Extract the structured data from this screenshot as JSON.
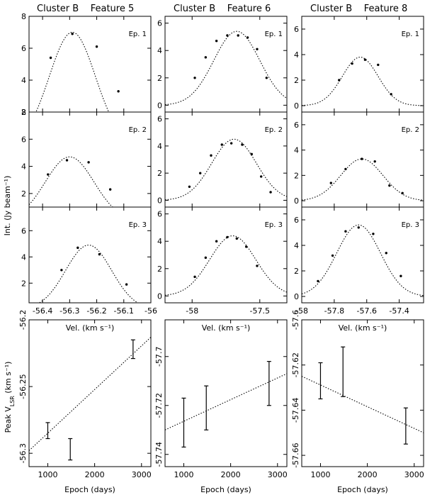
{
  "chart_data": [
    {
      "type": "scatter",
      "column_title": "Cluster B    Feature 5",
      "xlabel": "Vel. (km s⁻¹)",
      "ylabel": "Int. (Jy beam⁻¹)",
      "xlim": [
        -56.45,
        -56.0
      ],
      "xticks": [
        -56.4,
        -56.3,
        -56.2,
        -56.1,
        -56.0
      ],
      "xtick_labels": [
        "-56.4",
        "-56.3",
        "-56.2",
        "-56.1",
        "-56"
      ],
      "panels": [
        {
          "label": "Ep. 1",
          "ylim": [
            2,
            8
          ],
          "yticks": [
            2,
            4,
            6,
            8
          ],
          "ytick_labels": [
            "2",
            "4",
            "6",
            "8"
          ],
          "points": [
            [
              -56.37,
              5.4
            ],
            [
              -56.29,
              6.9
            ],
            [
              -56.2,
              6.1
            ],
            [
              -56.12,
              3.3
            ]
          ],
          "fit": {
            "center": -56.29,
            "amp": 7.0,
            "sigma": 0.085
          }
        },
        {
          "label": "Ep. 2",
          "ylim": [
            1,
            8
          ],
          "yticks": [
            2,
            4,
            6,
            8
          ],
          "ytick_labels": [
            "2",
            "4",
            "6",
            "8"
          ],
          "points": [
            [
              -56.38,
              3.4
            ],
            [
              -56.31,
              4.45
            ],
            [
              -56.23,
              4.3
            ],
            [
              -56.15,
              2.3
            ]
          ],
          "fit": {
            "center": -56.3,
            "amp": 4.7,
            "sigma": 0.09
          }
        },
        {
          "label": "Ep. 3",
          "ylim": [
            0.5,
            7.8
          ],
          "yticks": [
            2,
            4,
            6
          ],
          "ytick_labels": [
            "2",
            "4",
            "6"
          ],
          "points": [
            [
              -56.33,
              3.0
            ],
            [
              -56.27,
              4.7
            ],
            [
              -56.19,
              4.2
            ],
            [
              -56.09,
              1.9
            ]
          ],
          "fit": {
            "center": -56.23,
            "amp": 4.9,
            "sigma": 0.085
          }
        }
      ],
      "bottom": {
        "xlabel": "Epoch (days)",
        "ylabel": "Peak V",
        "xlim": [
          600,
          3200
        ],
        "xticks": [
          1000,
          2000,
          3000
        ],
        "xtick_labels": [
          "1000",
          "2000",
          "3000"
        ],
        "ylim": [
          -56.31,
          -56.2
        ],
        "yticks": [
          -56.3,
          -56.25,
          -56.2
        ],
        "ytick_labels": [
          "-56.3",
          "-56.25",
          "-56.2"
        ],
        "points": [
          {
            "x": 1000,
            "y": -56.283,
            "err": 0.006
          },
          {
            "x": 1480,
            "y": -56.297,
            "err": 0.008
          },
          {
            "x": 2820,
            "y": -56.222,
            "err": 0.007
          }
        ],
        "fit": [
          [
            600,
            -56.298
          ],
          [
            3200,
            -56.213
          ]
        ]
      }
    },
    {
      "type": "scatter",
      "column_title": "Cluster B    Feature 6",
      "xlabel": "Vel. (km s⁻¹)",
      "ylabel": "",
      "xlim": [
        -58.2,
        -57.3
      ],
      "xticks": [
        -58.0,
        -57.5
      ],
      "xtick_labels": [
        "-58",
        "-57.5"
      ],
      "panels": [
        {
          "label": "Ep. 1",
          "ylim": [
            -0.5,
            6.5
          ],
          "yticks": [
            0,
            2,
            4,
            6
          ],
          "ytick_labels": [
            "0",
            "2",
            "4",
            "6"
          ],
          "points": [
            [
              -57.98,
              2.0
            ],
            [
              -57.9,
              3.5
            ],
            [
              -57.82,
              4.7
            ],
            [
              -57.74,
              5.1
            ],
            [
              -57.66,
              5.1
            ],
            [
              -57.59,
              4.95
            ],
            [
              -57.52,
              4.1
            ],
            [
              -57.45,
              2.0
            ]
          ],
          "fit": {
            "center": -57.67,
            "amp": 5.4,
            "sigma": 0.17
          }
        },
        {
          "label": "Ep. 2",
          "ylim": [
            -0.5,
            6.5
          ],
          "yticks": [
            0,
            2,
            4,
            6
          ],
          "ytick_labels": [
            "0",
            "2",
            "4",
            "6"
          ],
          "points": [
            [
              -58.02,
              1.0
            ],
            [
              -57.94,
              2.0
            ],
            [
              -57.86,
              3.3
            ],
            [
              -57.78,
              4.1
            ],
            [
              -57.71,
              4.2
            ],
            [
              -57.63,
              4.1
            ],
            [
              -57.56,
              3.4
            ],
            [
              -57.49,
              1.75
            ],
            [
              -57.42,
              0.6
            ]
          ],
          "fit": {
            "center": -57.69,
            "amp": 4.5,
            "sigma": 0.165
          }
        },
        {
          "label": "Ep. 3",
          "ylim": [
            -0.5,
            6.5
          ],
          "yticks": [
            0,
            2,
            4,
            6
          ],
          "ytick_labels": [
            "0",
            "2",
            "4",
            "6"
          ],
          "points": [
            [
              -57.98,
              1.4
            ],
            [
              -57.9,
              2.8
            ],
            [
              -57.82,
              4.0
            ],
            [
              -57.74,
              4.3
            ],
            [
              -57.67,
              4.2
            ],
            [
              -57.6,
              3.6
            ],
            [
              -57.52,
              2.2
            ]
          ],
          "fit": {
            "center": -57.7,
            "amp": 4.4,
            "sigma": 0.17
          }
        }
      ],
      "bottom": {
        "xlabel": "Epoch (days)",
        "ylabel": "",
        "xlim": [
          600,
          3200
        ],
        "xticks": [
          1000,
          2000,
          3000
        ],
        "xtick_labels": [
          "1000",
          "2000",
          "3000"
        ],
        "ylim": [
          -57.745,
          -57.685
        ],
        "yticks": [
          -57.74,
          -57.72,
          -57.7
        ],
        "ytick_labels": [
          "-57.74",
          "-57.72",
          "-57.7"
        ],
        "points": [
          {
            "x": 1000,
            "y": -57.727,
            "err": 0.01
          },
          {
            "x": 1480,
            "y": -57.721,
            "err": 0.009
          },
          {
            "x": 2820,
            "y": -57.711,
            "err": 0.009
          }
        ],
        "fit": [
          [
            600,
            -57.73
          ],
          [
            3200,
            -57.707
          ]
        ]
      }
    },
    {
      "type": "scatter",
      "column_title": "Cluster B    Feature 8",
      "xlabel": "Vel. (km s⁻¹)",
      "ylabel": "",
      "xlim": [
        -58.0,
        -57.25
      ],
      "xticks": [
        -58.0,
        -57.8,
        -57.6,
        -57.4
      ],
      "xtick_labels": [
        "-58",
        "-57.8",
        "-57.6",
        "-57.4"
      ],
      "panels": [
        {
          "label": "Ep. 1",
          "ylim": [
            -0.5,
            7.0
          ],
          "yticks": [
            0,
            2,
            4,
            6
          ],
          "ytick_labels": [
            "0",
            "2",
            "4",
            "6"
          ],
          "points": [
            [
              -57.77,
              2.0
            ],
            [
              -57.69,
              3.3
            ],
            [
              -57.61,
              3.6
            ],
            [
              -57.53,
              3.2
            ],
            [
              -57.45,
              0.9
            ]
          ],
          "fit": {
            "center": -57.64,
            "amp": 3.8,
            "sigma": 0.11
          }
        },
        {
          "label": "Ep. 2",
          "ylim": [
            -0.5,
            7.0
          ],
          "yticks": [
            0,
            2,
            4,
            6
          ],
          "ytick_labels": [
            "0",
            "2",
            "4",
            "6"
          ],
          "points": [
            [
              -57.82,
              1.4
            ],
            [
              -57.73,
              2.5
            ],
            [
              -57.63,
              3.3
            ],
            [
              -57.55,
              3.1
            ],
            [
              -57.46,
              1.2
            ],
            [
              -57.38,
              0.6
            ]
          ],
          "fit": {
            "center": -57.63,
            "amp": 3.3,
            "sigma": 0.13
          }
        },
        {
          "label": "Ep. 3",
          "ylim": [
            -0.5,
            7.0
          ],
          "yticks": [
            0,
            2,
            4,
            6
          ],
          "ytick_labels": [
            "0",
            "2",
            "4",
            "6"
          ],
          "points": [
            [
              -57.9,
              1.2
            ],
            [
              -57.81,
              3.2
            ],
            [
              -57.73,
              5.1
            ],
            [
              -57.65,
              5.4
            ],
            [
              -57.56,
              4.9
            ],
            [
              -57.48,
              3.4
            ],
            [
              -57.39,
              1.6
            ]
          ],
          "fit": {
            "center": -57.65,
            "amp": 5.6,
            "sigma": 0.135
          }
        }
      ],
      "bottom": {
        "xlabel": "Epoch (days)",
        "ylabel": "",
        "xlim": [
          600,
          3200
        ],
        "xticks": [
          1000,
          2000,
          3000
        ],
        "xtick_labels": [
          "1000",
          "2000",
          "3000"
        ],
        "ylim": [
          -57.665,
          -57.6
        ],
        "yticks": [
          -57.66,
          -57.64,
          -57.62,
          -57.6
        ],
        "ytick_labels": [
          "-57.66",
          "-57.64",
          "-57.62",
          "-57.6"
        ],
        "points": [
          {
            "x": 1000,
            "y": -57.627,
            "err": 0.008
          },
          {
            "x": 1480,
            "y": -57.623,
            "err": 0.011
          },
          {
            "x": 2820,
            "y": -57.647,
            "err": 0.008
          }
        ],
        "fit": [
          [
            600,
            -57.625
          ],
          [
            3200,
            -57.65
          ]
        ]
      }
    }
  ],
  "labels": {
    "int_axis": "Int. (Jy beam⁻¹)",
    "peak_axis_main": "Peak V",
    "peak_axis_sub": "LSR",
    "peak_axis_unit": " (km s⁻¹)"
  }
}
